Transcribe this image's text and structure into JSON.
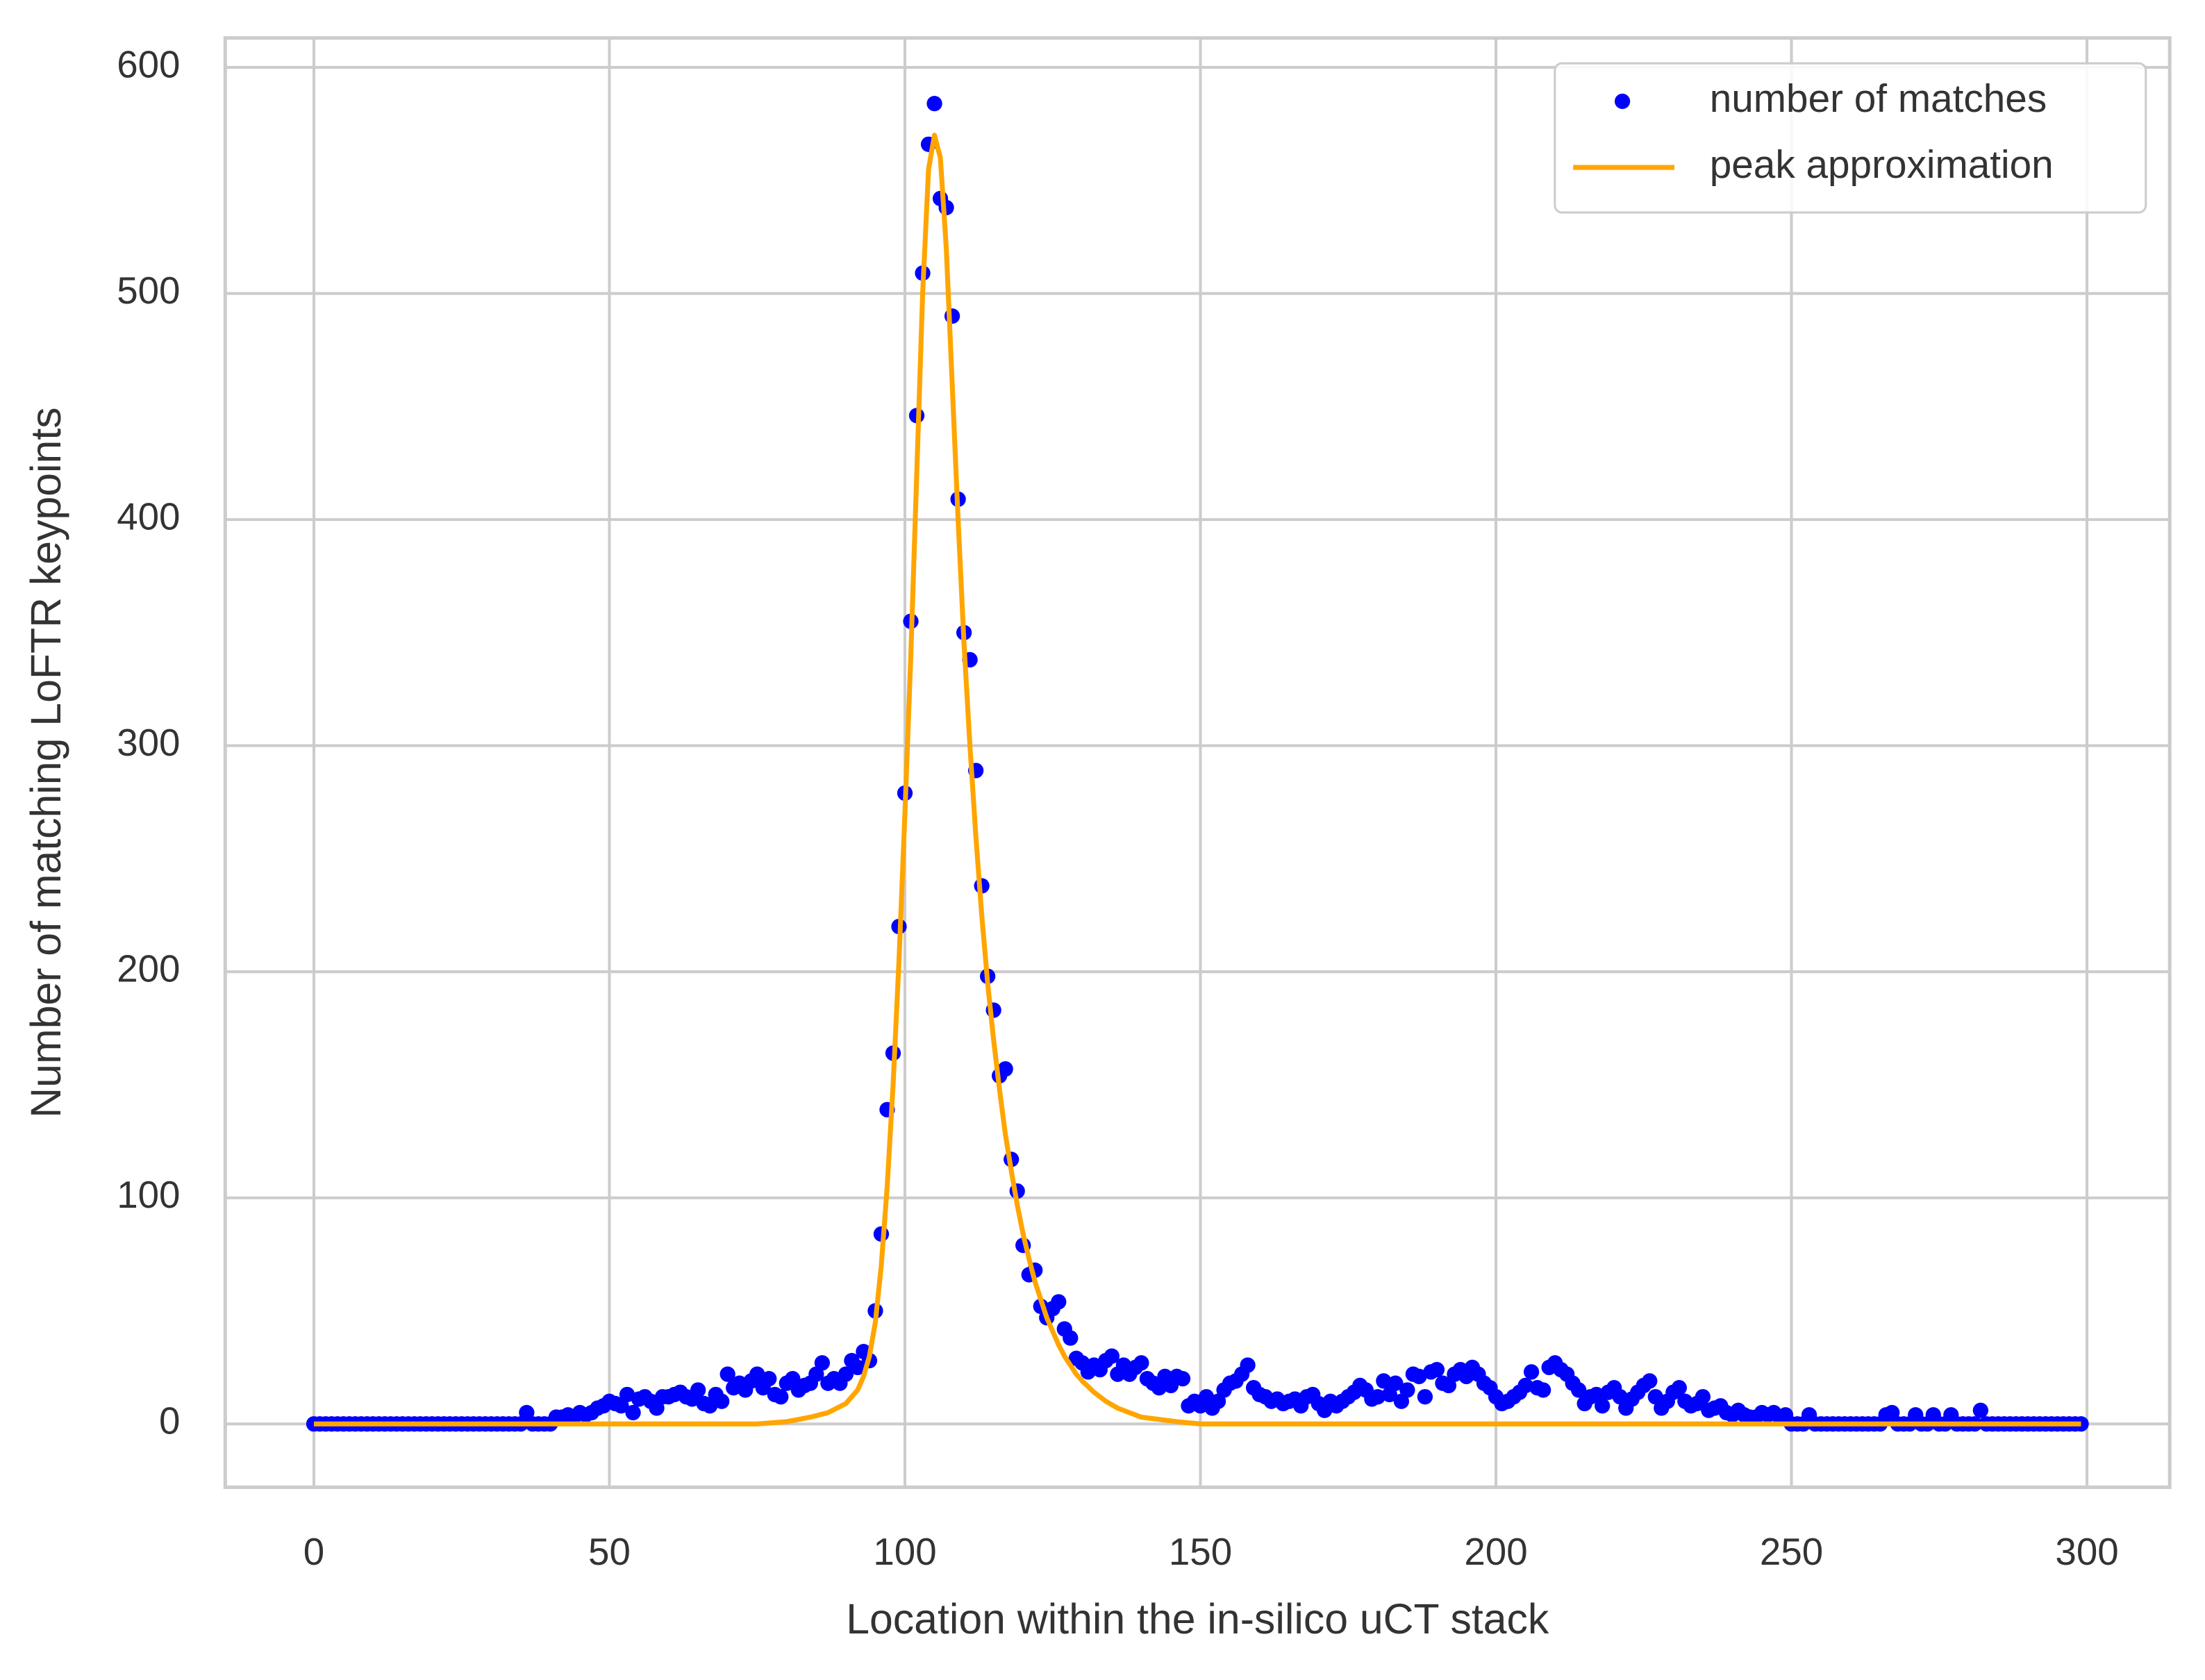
{
  "chart_data": {
    "type": "scatter",
    "x_label": "Location within the in-silico uCT stack",
    "y_label": "Number of matching LoFTR keypoints",
    "xlim": [
      -15,
      314
    ],
    "ylim": [
      -28,
      613
    ],
    "xticks": [
      0,
      50,
      100,
      150,
      200,
      250,
      300
    ],
    "yticks": [
      0,
      100,
      200,
      300,
      400,
      500,
      600
    ],
    "grid": true,
    "legend": "upper right",
    "series": [
      {
        "name": "number of matches",
        "type": "scatter",
        "color": "#0000ff",
        "x": [
          0,
          1,
          2,
          3,
          4,
          5,
          6,
          7,
          8,
          9,
          10,
          11,
          12,
          13,
          14,
          15,
          16,
          17,
          18,
          19,
          20,
          21,
          22,
          23,
          24,
          25,
          26,
          27,
          28,
          29,
          30,
          31,
          32,
          33,
          34,
          35,
          36,
          37,
          38,
          39,
          40,
          41,
          42,
          43,
          44,
          45,
          46,
          47,
          48,
          49,
          50,
          51,
          52,
          53,
          54,
          55,
          56,
          57,
          58,
          59,
          60,
          61,
          62,
          63,
          64,
          65,
          66,
          67,
          68,
          69,
          70,
          71,
          72,
          73,
          74,
          75,
          76,
          77,
          78,
          79,
          80,
          81,
          82,
          83,
          84,
          85,
          86,
          87,
          88,
          89,
          90,
          91,
          92,
          93,
          94,
          95,
          96,
          97,
          98,
          99,
          100,
          101,
          102,
          103,
          104,
          105,
          106,
          107,
          108,
          109,
          110,
          111,
          112,
          113,
          114,
          115,
          116,
          117,
          118,
          119,
          120,
          121,
          122,
          123,
          124,
          125,
          126,
          127,
          128,
          129,
          130,
          131,
          132,
          133,
          134,
          135,
          136,
          137,
          138,
          139,
          140,
          141,
          142,
          143,
          144,
          145,
          146,
          147,
          148,
          149,
          150,
          151,
          152,
          153,
          154,
          155,
          156,
          157,
          158,
          159,
          160,
          161,
          162,
          163,
          164,
          165,
          166,
          167,
          168,
          169,
          170,
          171,
          172,
          173,
          174,
          175,
          176,
          177,
          178,
          179,
          180,
          181,
          182,
          183,
          184,
          185,
          186,
          187,
          188,
          189,
          190,
          191,
          192,
          193,
          194,
          195,
          196,
          197,
          198,
          199,
          200,
          201,
          202,
          203,
          204,
          205,
          206,
          207,
          208,
          209,
          210,
          211,
          212,
          213,
          214,
          215,
          216,
          217,
          218,
          219,
          220,
          221,
          222,
          223,
          224,
          225,
          226,
          227,
          228,
          229,
          230,
          231,
          232,
          233,
          234,
          235,
          236,
          237,
          238,
          239,
          240,
          241,
          242,
          243,
          244,
          245,
          246,
          247,
          248,
          249,
          250,
          251,
          252,
          253,
          254,
          255,
          256,
          257,
          258,
          259,
          260,
          261,
          262,
          263,
          264,
          265,
          266,
          267,
          268,
          269,
          270,
          271,
          272,
          273,
          274,
          275,
          276,
          277,
          278,
          279,
          280,
          281,
          282,
          283,
          284,
          285,
          286,
          287,
          288,
          289,
          290,
          291,
          292,
          293,
          294,
          295,
          296,
          297,
          298,
          299
        ],
        "values": [
          0,
          0,
          0,
          0,
          0,
          0,
          0,
          0,
          0,
          0,
          0,
          0,
          0,
          0,
          0,
          0,
          0,
          0,
          0,
          0,
          0,
          0,
          0,
          0,
          0,
          0,
          0,
          0,
          0,
          0,
          0,
          0,
          0,
          0,
          0,
          0,
          5,
          0,
          0,
          0,
          0,
          3,
          3,
          4,
          3,
          5,
          4,
          5,
          7,
          8,
          10,
          9,
          8,
          13,
          5,
          11,
          12,
          10,
          7,
          12,
          12,
          13,
          14,
          12,
          11,
          15,
          9,
          8,
          13,
          10,
          22,
          16,
          18,
          15,
          19,
          22,
          16,
          20,
          13,
          12,
          18,
          20,
          15,
          17,
          18,
          22,
          27,
          18,
          20,
          18,
          22,
          28,
          25,
          32,
          28,
          50,
          84,
          139,
          164,
          220,
          279,
          355,
          446,
          509,
          566,
          584,
          542,
          538,
          490,
          409,
          350,
          338,
          289,
          238,
          198,
          183,
          154,
          157,
          117,
          103,
          79,
          66,
          68,
          52,
          47,
          51,
          54,
          42,
          38,
          29,
          27,
          23,
          26,
          24,
          28,
          30,
          22,
          26,
          22,
          25,
          27,
          20,
          18,
          16,
          21,
          17,
          21,
          20,
          8,
          10,
          8,
          12,
          7,
          10,
          15,
          18,
          19,
          22,
          26,
          16,
          13,
          12,
          10,
          11,
          9,
          10,
          11,
          8,
          12,
          13,
          9,
          6,
          10,
          8,
          10,
          12,
          14,
          17,
          15,
          11,
          12,
          19,
          13,
          18,
          10,
          15,
          22,
          21,
          12,
          23,
          24,
          18,
          17,
          22,
          24,
          21,
          25,
          22,
          18,
          16,
          12,
          9,
          10,
          12,
          14,
          17,
          23,
          16,
          15,
          25,
          27,
          24,
          22,
          18,
          15,
          9,
          12,
          13,
          8,
          14,
          16,
          12,
          7,
          11,
          14,
          17,
          19,
          12,
          7,
          10,
          14,
          16,
          10,
          8,
          9,
          12,
          6,
          7,
          8,
          5,
          4,
          6,
          4,
          3,
          3,
          5,
          4,
          5,
          3,
          4,
          0,
          0,
          0,
          4,
          0,
          0,
          0,
          0,
          0,
          0,
          0,
          0,
          0,
          0,
          0,
          0,
          4,
          5,
          0,
          0,
          0,
          4,
          0,
          0,
          4,
          0,
          0,
          4,
          0,
          0,
          0,
          0,
          6,
          0,
          0,
          0,
          0,
          0,
          0,
          0,
          0,
          0,
          0,
          0,
          0,
          0,
          0,
          0,
          0,
          0
        ]
      },
      {
        "name": "peak approximation",
        "type": "line",
        "color": "#ffa500",
        "x": [
          0,
          75,
          80,
          84,
          87,
          90,
          92,
          93,
          94,
          95,
          96,
          97,
          98,
          99,
          100,
          101,
          102,
          103,
          104,
          105,
          106,
          107,
          108,
          109,
          110,
          111,
          112,
          113,
          114,
          115,
          116,
          117,
          118,
          119,
          120,
          121,
          122,
          123,
          124,
          125,
          126,
          127,
          128,
          129,
          130,
          132,
          134,
          136,
          138,
          140,
          143,
          146,
          150,
          299
        ],
        "values": [
          0,
          0,
          1,
          3,
          5,
          9,
          15,
          21,
          30,
          45,
          70,
          105,
          150,
          205,
          270,
          340,
          420,
          500,
          555,
          570,
          560,
          520,
          460,
          400,
          345,
          300,
          260,
          225,
          195,
          170,
          148,
          128,
          112,
          97,
          84,
          73,
          63,
          55,
          47,
          41,
          35,
          30,
          26,
          22,
          19,
          14,
          10,
          7,
          5,
          3,
          2,
          1,
          0,
          0
        ]
      }
    ]
  }
}
